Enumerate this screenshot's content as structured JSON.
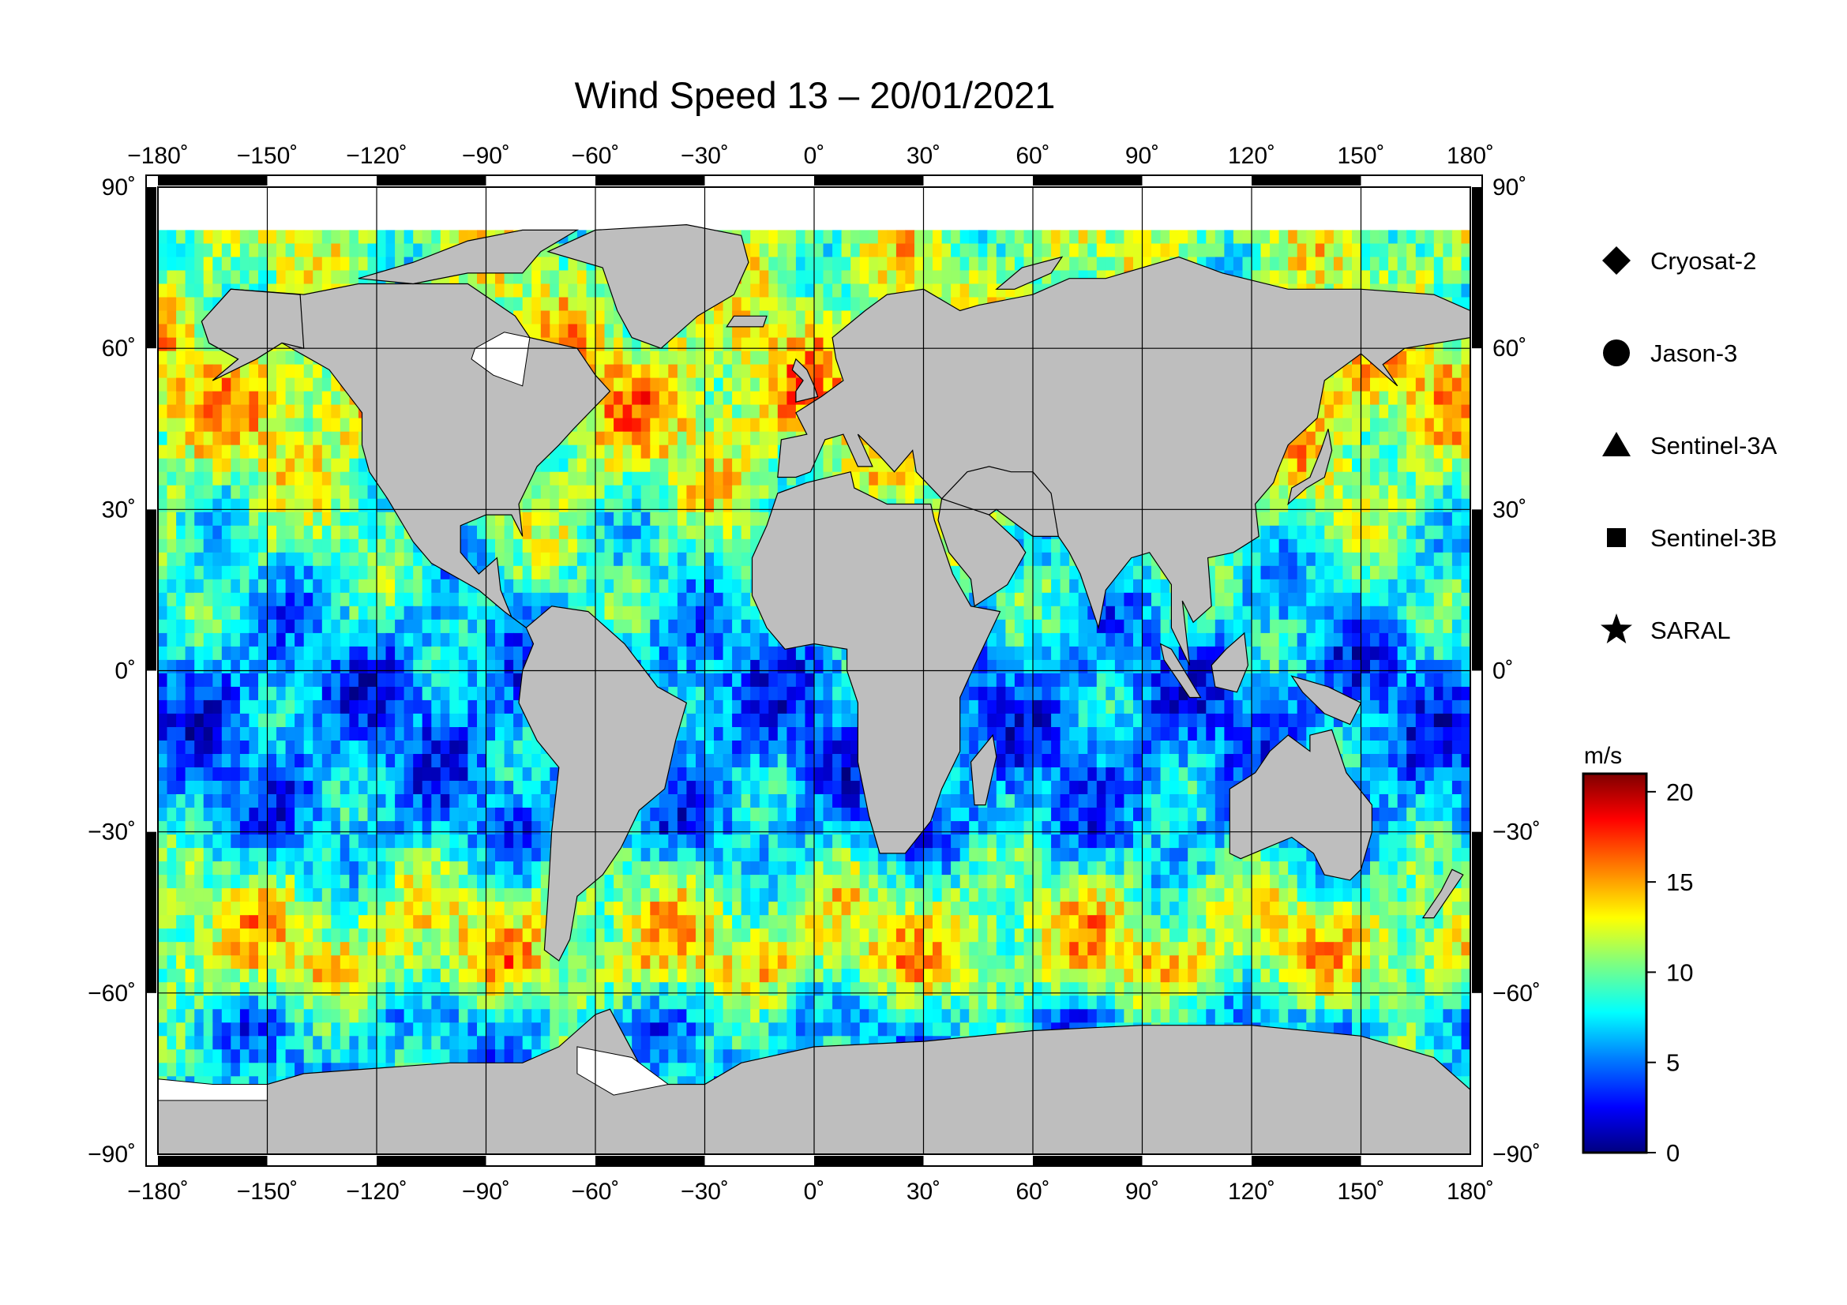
{
  "title": "Wind Speed 13 – 20/01/2021",
  "map": {
    "lon_range": [
      -180,
      180
    ],
    "lat_range": [
      -90,
      90
    ],
    "lon_ticks": [
      {
        "value": -180,
        "label": "−180˚"
      },
      {
        "value": -150,
        "label": "−150˚"
      },
      {
        "value": -120,
        "label": "−120˚"
      },
      {
        "value": -90,
        "label": "−90˚"
      },
      {
        "value": -60,
        "label": "−60˚"
      },
      {
        "value": -30,
        "label": "−30˚"
      },
      {
        "value": 0,
        "label": "0˚"
      },
      {
        "value": 30,
        "label": "30˚"
      },
      {
        "value": 60,
        "label": "60˚"
      },
      {
        "value": 90,
        "label": "90˚"
      },
      {
        "value": 120,
        "label": "120˚"
      },
      {
        "value": 150,
        "label": "150˚"
      },
      {
        "value": 180,
        "label": "180˚"
      }
    ],
    "lat_ticks_left": [
      {
        "value": 90,
        "label": "90˚"
      },
      {
        "value": 60,
        "label": "60˚"
      },
      {
        "value": 30,
        "label": "30˚"
      },
      {
        "value": 0,
        "label": "0˚"
      },
      {
        "value": -30,
        "label": "−30˚"
      },
      {
        "value": -60,
        "label": "−60˚"
      },
      {
        "value": -90,
        "label": "−90˚"
      }
    ],
    "lat_ticks_right": [
      {
        "value": 90,
        "label": "90˚"
      },
      {
        "value": 60,
        "label": "60˚"
      },
      {
        "value": 30,
        "label": "30˚"
      },
      {
        "value": 0,
        "label": "0˚"
      },
      {
        "value": -30,
        "label": "−30˚"
      },
      {
        "value": -60,
        "label": "−60˚"
      },
      {
        "value": -90,
        "label": "−90˚"
      }
    ],
    "land_color": "#bebebe",
    "ice_color": "#ffffff",
    "grid": true
  },
  "legend": {
    "placement": "right",
    "items": [
      {
        "symbol": "diamond",
        "label": "Cryosat-2"
      },
      {
        "symbol": "circle",
        "label": "Jason-3"
      },
      {
        "symbol": "triangle",
        "label": "Sentinel-3A"
      },
      {
        "symbol": "square",
        "label": "Sentinel-3B"
      },
      {
        "symbol": "star",
        "label": "SARAL"
      }
    ]
  },
  "colorbar": {
    "unit": "m/s",
    "min": 0,
    "max": 21,
    "ticks": [
      {
        "value": 20,
        "label": "20"
      },
      {
        "value": 15,
        "label": "15"
      },
      {
        "value": 10,
        "label": "10"
      },
      {
        "value": 5,
        "label": "5"
      },
      {
        "value": 0,
        "label": "0"
      }
    ],
    "colors": [
      "#00007f",
      "#0000ff",
      "#007fff",
      "#00ffff",
      "#7fff7f",
      "#ffff00",
      "#ff7f00",
      "#ff0000",
      "#7f0000"
    ]
  },
  "chart_data": {
    "type": "heatmap",
    "title": "Wind Speed 13 – 20/01/2021",
    "value_unit": "m/s",
    "value_range": [
      0,
      21
    ],
    "x_range": [
      -180,
      180
    ],
    "y_range": [
      -90,
      90
    ],
    "zonal_profile": [
      {
        "lat": 70,
        "speed": 11
      },
      {
        "lat": 50,
        "speed": 14
      },
      {
        "lat": 35,
        "speed": 11
      },
      {
        "lat": 15,
        "speed": 8
      },
      {
        "lat": 0,
        "speed": 5
      },
      {
        "lat": -15,
        "speed": 5
      },
      {
        "lat": -30,
        "speed": 6
      },
      {
        "lat": -45,
        "speed": 12
      },
      {
        "lat": -55,
        "speed": 13
      },
      {
        "lat": -65,
        "speed": 7
      }
    ]
  }
}
